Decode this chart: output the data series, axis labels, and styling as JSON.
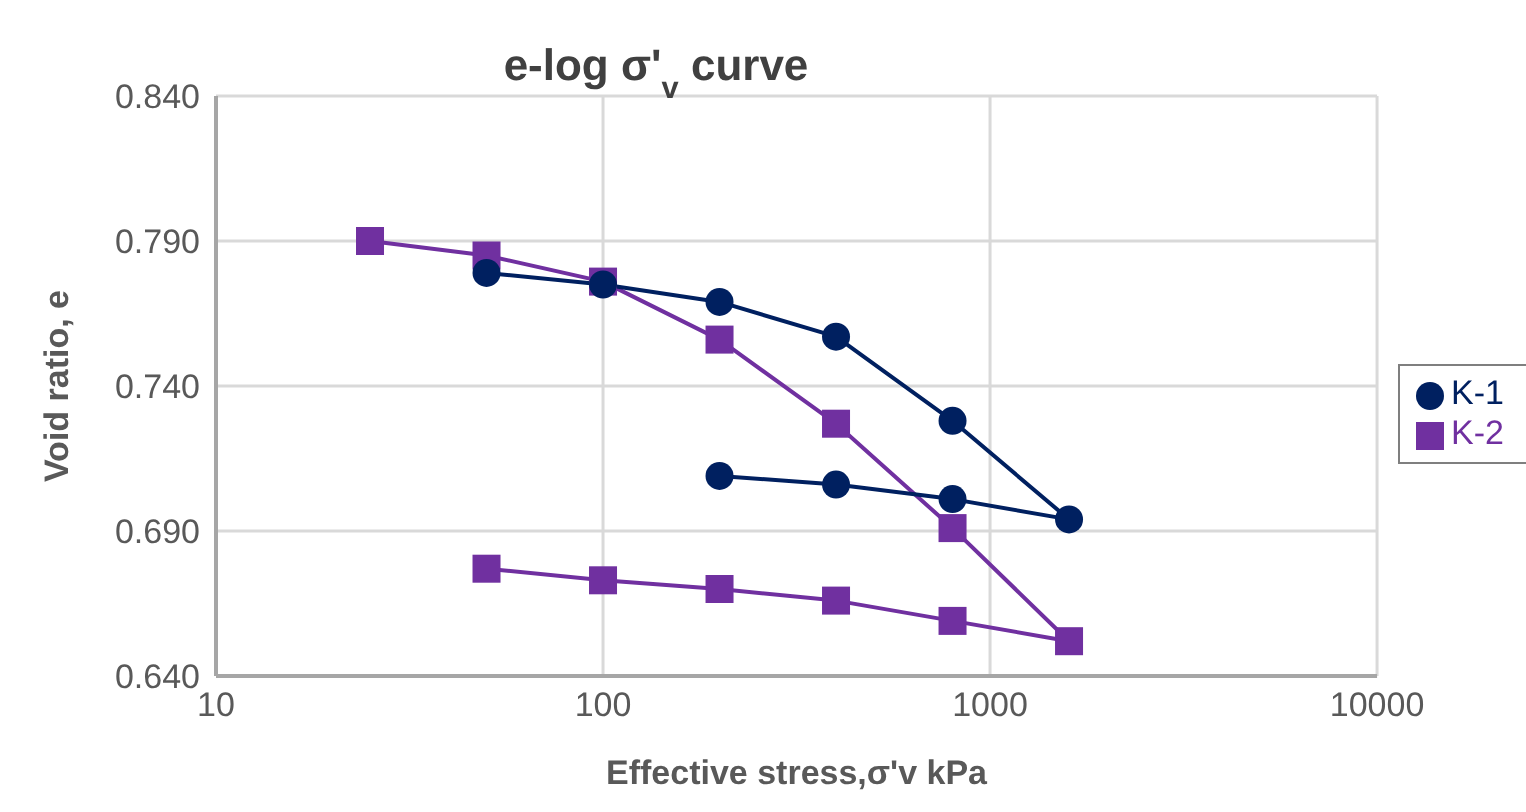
{
  "chart_data": {
    "type": "line",
    "title": "e-log σ'$_{v}$  curve",
    "xlabel": "Effective stress,σ'v  kPa",
    "ylabel": "Void ratio, e",
    "log": "x",
    "grid": true,
    "legend": "right",
    "xlim": [
      10,
      10000
    ],
    "xticks": [
      10,
      100,
      1000,
      10000
    ],
    "ylim": [
      0.64,
      0.84
    ],
    "yticks": [
      {
        "value": 0.64,
        "label": "0.640"
      },
      {
        "value": 0.69,
        "label": "0.690"
      },
      {
        "value": 0.74,
        "label": "0.740"
      },
      {
        "value": 0.79,
        "label": "0.790"
      },
      {
        "value": 0.84,
        "label": "0.840"
      }
    ],
    "series": [
      {
        "name": "K-1",
        "color": "#002060",
        "marker": "circle",
        "x": [
          50,
          100,
          200,
          400,
          800,
          1600,
          800,
          400,
          200
        ],
        "values": [
          0.779,
          0.775,
          0.769,
          0.757,
          0.728,
          0.694,
          0.701,
          0.706,
          0.709
        ]
      },
      {
        "name": "K-2",
        "color": "#7030a0",
        "marker": "square",
        "x": [
          25,
          50,
          100,
          200,
          400,
          800,
          1600,
          800,
          400,
          200,
          100,
          50
        ],
        "values": [
          0.79,
          0.785,
          0.776,
          0.756,
          0.727,
          0.691,
          0.652,
          0.659,
          0.666,
          0.67,
          0.673,
          0.677
        ]
      }
    ]
  }
}
